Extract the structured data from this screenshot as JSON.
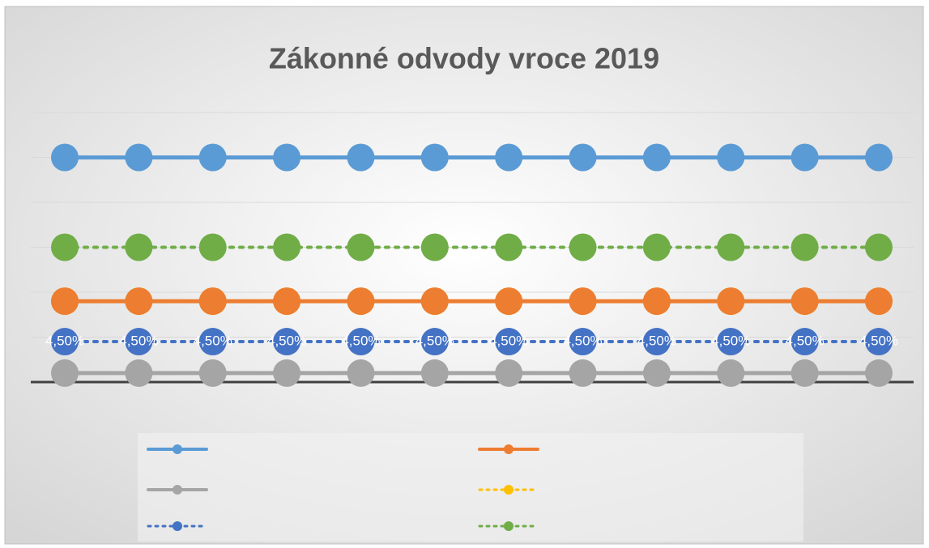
{
  "chart_data": {
    "type": "line",
    "title": "Zákonné odvody vroce 2019",
    "categories": [
      null,
      null,
      null,
      null,
      null,
      null,
      null,
      null,
      null,
      null,
      null,
      null
    ],
    "ylim": [
      0,
      30
    ],
    "yticks": [
      0,
      5,
      10,
      15,
      20,
      25,
      30
    ],
    "grid": true,
    "series": [
      {
        "color": "#5b9bd5",
        "dash": false,
        "values": [
          25,
          25,
          25,
          25,
          25,
          25,
          25,
          25,
          25,
          25,
          25,
          25
        ]
      },
      {
        "color": "#ed7d31",
        "dash": false,
        "values": [
          9,
          9,
          9,
          9,
          9,
          9,
          9,
          9,
          9,
          9,
          9,
          9
        ]
      },
      {
        "color": "#a5a5a5",
        "dash": false,
        "values": [
          1,
          1,
          1,
          1,
          1,
          1,
          1,
          1,
          1,
          1,
          1,
          1
        ]
      },
      {
        "color": "#ffc000",
        "dash": true,
        "values": [
          9,
          9,
          9,
          9,
          9,
          9,
          9,
          9,
          9,
          9,
          9,
          9
        ]
      },
      {
        "color": "#4472c4",
        "dash": true,
        "values": [
          4.5,
          4.5,
          4.5,
          4.5,
          4.5,
          4.5,
          4.5,
          4.5,
          4.5,
          4.5,
          4.5,
          4.5
        ],
        "value_labels": [
          "4,50%",
          "4,50%",
          "4,50%",
          "4,50%",
          "4,50%",
          "4,50%",
          "4,50%",
          "4,50%",
          "4,50%",
          "4,50%",
          "4,50%",
          "4,50%"
        ]
      },
      {
        "color": "#70ad47",
        "dash": true,
        "values": [
          15,
          15,
          15,
          15,
          15,
          15,
          15,
          15,
          15,
          15,
          15,
          15
        ]
      }
    ]
  }
}
